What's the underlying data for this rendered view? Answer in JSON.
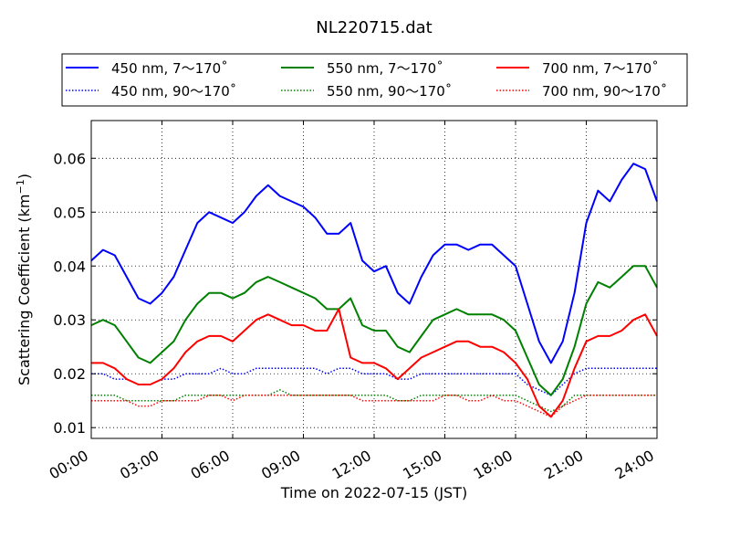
{
  "chart_data": {
    "type": "line",
    "title": "NL220715.dat",
    "xlabel": "Time on 2022-07-15 (JST)",
    "ylabel_main": "Scattering Coefficient (km",
    "ylabel_sup": "−1",
    "ylabel_close": ")",
    "xlim": [
      0,
      24
    ],
    "ylim": [
      0.008,
      0.067
    ],
    "grid": true,
    "legend_position": "top",
    "x_ticks": [
      {
        "value": 0,
        "label": "00:00"
      },
      {
        "value": 3,
        "label": "03:00"
      },
      {
        "value": 6,
        "label": "06:00"
      },
      {
        "value": 9,
        "label": "09:00"
      },
      {
        "value": 12,
        "label": "12:00"
      },
      {
        "value": 15,
        "label": "15:00"
      },
      {
        "value": 18,
        "label": "18:00"
      },
      {
        "value": 21,
        "label": "21:00"
      },
      {
        "value": 24,
        "label": "24:00"
      }
    ],
    "y_ticks": [
      {
        "value": 0.01,
        "label": "0.01"
      },
      {
        "value": 0.02,
        "label": "0.02"
      },
      {
        "value": 0.03,
        "label": "0.03"
      },
      {
        "value": 0.04,
        "label": "0.04"
      },
      {
        "value": 0.05,
        "label": "0.05"
      },
      {
        "value": 0.06,
        "label": "0.06"
      }
    ],
    "x": [
      0,
      0.5,
      1,
      1.5,
      2,
      2.5,
      3,
      3.5,
      4,
      4.5,
      5,
      5.5,
      6,
      6.5,
      7,
      7.5,
      8,
      8.5,
      9,
      9.5,
      10,
      10.5,
      11,
      11.5,
      12,
      12.5,
      13,
      13.5,
      14,
      14.5,
      15,
      15.5,
      16,
      16.5,
      17,
      17.5,
      18,
      18.5,
      19,
      19.5,
      20,
      20.5,
      21,
      21.5,
      22,
      22.5,
      23,
      23.5,
      24
    ],
    "series": [
      {
        "name": "450 nm, 7～170˚",
        "color": "#0000ff",
        "style": "solid",
        "values": [
          0.041,
          0.043,
          0.042,
          0.038,
          0.034,
          0.033,
          0.035,
          0.038,
          0.043,
          0.048,
          0.05,
          0.049,
          0.048,
          0.05,
          0.053,
          0.055,
          0.053,
          0.052,
          0.051,
          0.049,
          0.046,
          0.046,
          0.048,
          0.041,
          0.039,
          0.04,
          0.035,
          0.033,
          0.038,
          0.042,
          0.044,
          0.044,
          0.043,
          0.044,
          0.044,
          0.042,
          0.04,
          0.033,
          0.026,
          0.022,
          0.026,
          0.035,
          0.048,
          0.054,
          0.052,
          0.056,
          0.059,
          0.058,
          0.052
        ]
      },
      {
        "name": "450 nm, 90～170˚",
        "color": "#0000ff",
        "style": "dotted",
        "values": [
          0.02,
          0.02,
          0.019,
          0.019,
          0.018,
          0.018,
          0.019,
          0.019,
          0.02,
          0.02,
          0.02,
          0.021,
          0.02,
          0.02,
          0.021,
          0.021,
          0.021,
          0.021,
          0.021,
          0.021,
          0.02,
          0.021,
          0.021,
          0.02,
          0.02,
          0.02,
          0.019,
          0.019,
          0.02,
          0.02,
          0.02,
          0.02,
          0.02,
          0.02,
          0.02,
          0.02,
          0.02,
          0.018,
          0.017,
          0.016,
          0.018,
          0.02,
          0.021,
          0.021,
          0.021,
          0.021,
          0.021,
          0.021,
          0.021
        ]
      },
      {
        "name": "550 nm, 7～170˚",
        "color": "#008000",
        "style": "solid",
        "values": [
          0.029,
          0.03,
          0.029,
          0.026,
          0.023,
          0.022,
          0.024,
          0.026,
          0.03,
          0.033,
          0.035,
          0.035,
          0.034,
          0.035,
          0.037,
          0.038,
          0.037,
          0.036,
          0.035,
          0.034,
          0.032,
          0.032,
          0.034,
          0.029,
          0.028,
          0.028,
          0.025,
          0.024,
          0.027,
          0.03,
          0.031,
          0.032,
          0.031,
          0.031,
          0.031,
          0.03,
          0.028,
          0.023,
          0.018,
          0.016,
          0.019,
          0.025,
          0.033,
          0.037,
          0.036,
          0.038,
          0.04,
          0.04,
          0.036
        ]
      },
      {
        "name": "550 nm, 90～170˚",
        "color": "#008000",
        "style": "dotted",
        "values": [
          0.016,
          0.016,
          0.016,
          0.015,
          0.015,
          0.015,
          0.015,
          0.015,
          0.016,
          0.016,
          0.016,
          0.016,
          0.016,
          0.016,
          0.016,
          0.016,
          0.017,
          0.016,
          0.016,
          0.016,
          0.016,
          0.016,
          0.016,
          0.016,
          0.016,
          0.016,
          0.015,
          0.015,
          0.016,
          0.016,
          0.016,
          0.016,
          0.016,
          0.016,
          0.016,
          0.016,
          0.016,
          0.015,
          0.014,
          0.013,
          0.014,
          0.016,
          0.016,
          0.016,
          0.016,
          0.016,
          0.016,
          0.016,
          0.016
        ]
      },
      {
        "name": "700 nm, 7～170˚",
        "color": "#ff0000",
        "style": "solid",
        "values": [
          0.022,
          0.022,
          0.021,
          0.019,
          0.018,
          0.018,
          0.019,
          0.021,
          0.024,
          0.026,
          0.027,
          0.027,
          0.026,
          0.028,
          0.03,
          0.031,
          0.03,
          0.029,
          0.029,
          0.028,
          0.028,
          0.032,
          0.023,
          0.022,
          0.022,
          0.021,
          0.019,
          0.021,
          0.023,
          0.024,
          0.025,
          0.026,
          0.026,
          0.025,
          0.025,
          0.024,
          0.022,
          0.019,
          0.014,
          0.012,
          0.015,
          0.021,
          0.026,
          0.027,
          0.027,
          0.028,
          0.03,
          0.031,
          0.027
        ]
      },
      {
        "name": "700 nm, 90～170˚",
        "color": "#ff0000",
        "style": "dotted",
        "values": [
          0.015,
          0.015,
          0.015,
          0.015,
          0.014,
          0.014,
          0.015,
          0.015,
          0.015,
          0.015,
          0.016,
          0.016,
          0.015,
          0.016,
          0.016,
          0.016,
          0.016,
          0.016,
          0.016,
          0.016,
          0.016,
          0.016,
          0.016,
          0.015,
          0.015,
          0.015,
          0.015,
          0.015,
          0.015,
          0.015,
          0.016,
          0.016,
          0.015,
          0.015,
          0.016,
          0.015,
          0.015,
          0.014,
          0.013,
          0.012,
          0.014,
          0.015,
          0.016,
          0.016,
          0.016,
          0.016,
          0.016,
          0.016,
          0.016
        ]
      }
    ]
  }
}
